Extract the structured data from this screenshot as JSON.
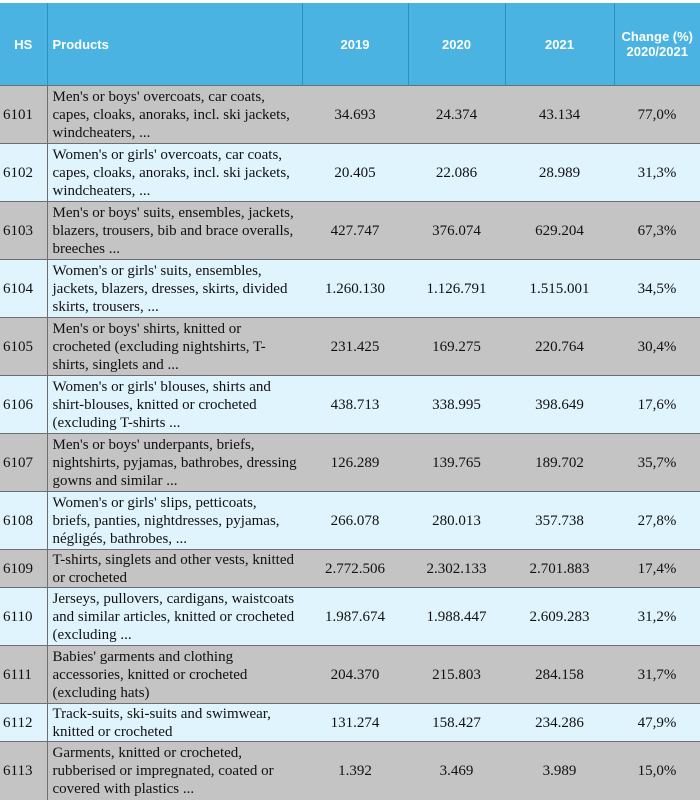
{
  "headers": {
    "hs": "HS",
    "products": "Products",
    "y2019": "2019",
    "y2020": "2020",
    "y2021": "2021",
    "change": "Change (%) 2020/2021"
  },
  "rows": [
    {
      "hs": "6101",
      "product": "Men's or boys' overcoats, car coats, capes, cloaks, anoraks, incl. ski jackets, windcheaters, ...",
      "y2019": "34.693",
      "y2020": "24.374",
      "y2021": "43.134",
      "change": "77,0%"
    },
    {
      "hs": "6102",
      "product": "Women's or girls' overcoats, car coats, capes, cloaks, anoraks, incl. ski jackets, windcheaters, ...",
      "y2019": "20.405",
      "y2020": "22.086",
      "y2021": "28.989",
      "change": "31,3%"
    },
    {
      "hs": "6103",
      "product": "Men's or boys' suits, ensembles, jackets, blazers, trousers, bib and brace overalls, breeches ...",
      "y2019": "427.747",
      "y2020": "376.074",
      "y2021": "629.204",
      "change": "67,3%"
    },
    {
      "hs": "6104",
      "product": "Women's or girls' suits, ensembles, jackets, blazers, dresses, skirts, divided skirts, trousers, ...",
      "y2019": "1.260.130",
      "y2020": "1.126.791",
      "y2021": "1.515.001",
      "change": "34,5%"
    },
    {
      "hs": "6105",
      "product": "Men's or boys' shirts, knitted or crocheted (excluding nightshirts, T-shirts, singlets and ...",
      "y2019": "231.425",
      "y2020": "169.275",
      "y2021": "220.764",
      "change": "30,4%"
    },
    {
      "hs": "6106",
      "product": "Women's or girls' blouses, shirts and shirt-blouses, knitted or crocheted (excluding T-shirts ...",
      "y2019": "438.713",
      "y2020": "338.995",
      "y2021": "398.649",
      "change": "17,6%"
    },
    {
      "hs": "6107",
      "product": "Men's or boys' underpants, briefs, nightshirts, pyjamas, bathrobes, dressing gowns and similar ...",
      "y2019": "126.289",
      "y2020": "139.765",
      "y2021": "189.702",
      "change": "35,7%"
    },
    {
      "hs": "6108",
      "product": "Women's or girls' slips, petticoats, briefs, panties, nightdresses, pyjamas, négligés, bathrobes, ...",
      "y2019": "266.078",
      "y2020": "280.013",
      "y2021": "357.738",
      "change": "27,8%"
    },
    {
      "hs": "6109",
      "product": "T-shirts, singlets and other vests, knitted or crocheted",
      "y2019": "2.772.506",
      "y2020": "2.302.133",
      "y2021": "2.701.883",
      "change": "17,4%"
    },
    {
      "hs": "6110",
      "product": "Jerseys, pullovers, cardigans, waistcoats and similar articles, knitted or crocheted (excluding ...",
      "y2019": "1.987.674",
      "y2020": "1.988.447",
      "y2021": "2.609.283",
      "change": "31,2%"
    },
    {
      "hs": "6111",
      "product": "Babies' garments and clothing accessories, knitted or crocheted (excluding hats)",
      "y2019": "204.370",
      "y2020": "215.803",
      "y2021": "284.158",
      "change": "31,7%"
    },
    {
      "hs": "6112",
      "product": "Track-suits, ski-suits and swimwear, knitted or crocheted",
      "y2019": "131.274",
      "y2020": "158.427",
      "y2021": "234.286",
      "change": "47,9%"
    },
    {
      "hs": "6113",
      "product": "Garments, knitted or crocheted, rubberised or impregnated, coated or covered with plastics ...",
      "y2019": "1.392",
      "y2020": "3.469",
      "y2021": "3.989",
      "change": "15,0%"
    }
  ]
}
